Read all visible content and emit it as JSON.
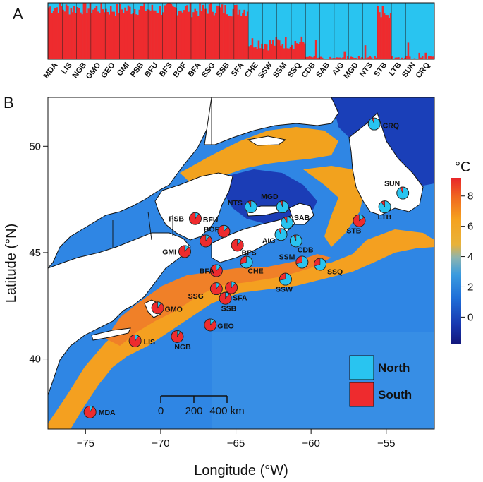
{
  "panels": {
    "a_label": "A",
    "b_label": "B"
  },
  "colors": {
    "north": "#29c4f0",
    "south": "#ee2b2e",
    "land": "#ffffff"
  },
  "structure_plot": {
    "populations": [
      {
        "code": "MDA",
        "south": 0.92
      },
      {
        "code": "LIS",
        "south": 0.9
      },
      {
        "code": "NGB",
        "south": 0.91
      },
      {
        "code": "GMO",
        "south": 0.9
      },
      {
        "code": "GEO",
        "south": 0.88
      },
      {
        "code": "GMI",
        "south": 0.89
      },
      {
        "code": "PSB",
        "south": 0.9
      },
      {
        "code": "BFU",
        "south": 0.88
      },
      {
        "code": "BFS",
        "south": 0.89
      },
      {
        "code": "BOF",
        "south": 0.9
      },
      {
        "code": "BFA",
        "south": 0.87
      },
      {
        "code": "SSG",
        "south": 0.9
      },
      {
        "code": "SSB",
        "south": 0.88
      },
      {
        "code": "SFA",
        "south": 0.88
      },
      {
        "code": "CHE",
        "south": 0.3
      },
      {
        "code": "SSW",
        "south": 0.28
      },
      {
        "code": "SSM",
        "south": 0.3
      },
      {
        "code": "SSQ",
        "south": 0.3
      },
      {
        "code": "CDB",
        "south": 0.06
      },
      {
        "code": "SAB",
        "south": 0.08
      },
      {
        "code": "AIG",
        "south": 0.07
      },
      {
        "code": "MGD",
        "south": 0.06
      },
      {
        "code": "NTS",
        "south": 0.08
      },
      {
        "code": "STB",
        "south": 0.85
      },
      {
        "code": "LTB",
        "south": 0.1
      },
      {
        "code": "SUN",
        "south": 0.08
      },
      {
        "code": "CRQ",
        "south": 0.06
      }
    ]
  },
  "map": {
    "x_axis_title": "Longitude (°W)",
    "y_axis_title": "Latitude (°N)",
    "x_ticks": [
      -75,
      -70,
      -65,
      -60,
      -55
    ],
    "y_ticks": [
      40,
      45,
      50
    ],
    "xlim": [
      -77.5,
      -51.8
    ],
    "ylim": [
      36.7,
      52.3
    ],
    "sites": [
      {
        "code": "MDA",
        "lon": -74.7,
        "lat": 37.5,
        "south": 0.92
      },
      {
        "code": "LIS",
        "lon": -71.7,
        "lat": 40.85,
        "south": 0.9
      },
      {
        "code": "NGB",
        "lon": -68.9,
        "lat": 41.05,
        "south": 0.91
      },
      {
        "code": "GMO",
        "lon": -70.2,
        "lat": 42.4,
        "south": 0.9
      },
      {
        "code": "GEO",
        "lon": -66.7,
        "lat": 41.6,
        "south": 0.88
      },
      {
        "code": "GMI",
        "lon": -68.4,
        "lat": 45.05,
        "south": 0.89
      },
      {
        "code": "PSB",
        "lon": -67.7,
        "lat": 46.6,
        "south": 0.9
      },
      {
        "code": "BOF",
        "lon": -67.0,
        "lat": 45.55,
        "south": 0.9
      },
      {
        "code": "BFU",
        "lon": -65.8,
        "lat": 46.0,
        "south": 0.88
      },
      {
        "code": "BFS",
        "lon": -64.9,
        "lat": 45.35,
        "south": 0.89
      },
      {
        "code": "BFA",
        "lon": -66.3,
        "lat": 44.15,
        "south": 0.87
      },
      {
        "code": "SSG",
        "lon": -66.3,
        "lat": 43.3,
        "south": 0.9
      },
      {
        "code": "SSB",
        "lon": -65.7,
        "lat": 42.85,
        "south": 0.88
      },
      {
        "code": "SFA",
        "lon": -65.3,
        "lat": 43.35,
        "south": 0.88
      },
      {
        "code": "CHE",
        "lon": -64.3,
        "lat": 44.55,
        "south": 0.3
      },
      {
        "code": "SSW",
        "lon": -61.7,
        "lat": 43.75,
        "south": 0.28
      },
      {
        "code": "SSM",
        "lon": -60.6,
        "lat": 44.55,
        "south": 0.3
      },
      {
        "code": "SSQ",
        "lon": -59.4,
        "lat": 44.45,
        "south": 0.3
      },
      {
        "code": "CDB",
        "lon": -61.0,
        "lat": 45.55,
        "south": 0.06
      },
      {
        "code": "AIG",
        "lon": -62.0,
        "lat": 45.85,
        "south": 0.07
      },
      {
        "code": "SAB",
        "lon": -61.6,
        "lat": 46.4,
        "south": 0.08
      },
      {
        "code": "MGD",
        "lon": -61.9,
        "lat": 47.15,
        "south": 0.06
      },
      {
        "code": "NTS",
        "lon": -64.0,
        "lat": 47.15,
        "south": 0.08
      },
      {
        "code": "STB",
        "lon": -56.8,
        "lat": 46.5,
        "south": 0.85
      },
      {
        "code": "LTB",
        "lon": -55.1,
        "lat": 47.15,
        "south": 0.1
      },
      {
        "code": "SUN",
        "lon": -53.9,
        "lat": 47.8,
        "south": 0.08
      },
      {
        "code": "CRQ",
        "lon": -55.8,
        "lat": 51.05,
        "south": 0.06
      }
    ],
    "scale_bar": {
      "ticks": [
        "0",
        "200",
        "400 km"
      ]
    },
    "colorbar": {
      "unit": "°C",
      "ticks": [
        0,
        2,
        4,
        6,
        8
      ],
      "range": [
        -1.8,
        9.2
      ]
    },
    "legend": [
      {
        "name": "North",
        "color_key": "north"
      },
      {
        "name": "South",
        "color_key": "south"
      }
    ]
  }
}
